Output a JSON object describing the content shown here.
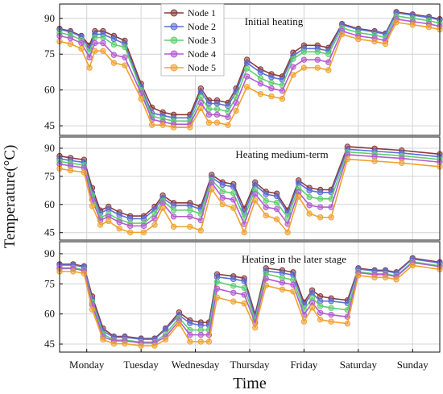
{
  "chart_data": {
    "type": "line",
    "xlabel": "Time",
    "ylabel": "Temperature(°C)",
    "categories": [
      "Monday",
      "Tuesday",
      "Wednesday",
      "Thursday",
      "Friday",
      "Saturday",
      "Sunday"
    ],
    "yticks": [
      45,
      60,
      75,
      90
    ],
    "ylim": [
      41,
      96
    ],
    "xlim": [
      0,
      7
    ],
    "legend": {
      "placement": "top-center",
      "entries": [
        "Node 1",
        "Node 2",
        "Node 3",
        "Node 4",
        "Node 5"
      ]
    },
    "colors": {
      "Node 1": "#8b3a3a",
      "Node 2": "#5b6fd6",
      "Node 3": "#5fcf6f",
      "Node 4": "#b35cd1",
      "Node 5": "#f0a22e"
    },
    "panels": [
      {
        "title": "Initial heating",
        "x": [
          0,
          0.2,
          0.4,
          0.55,
          0.65,
          0.8,
          1.0,
          1.2,
          1.5,
          1.7,
          1.9,
          2.1,
          2.4,
          2.6,
          2.75,
          2.9,
          3.1,
          3.25,
          3.45,
          3.7,
          3.9,
          4.1,
          4.3,
          4.5,
          4.75,
          4.95,
          5.2,
          5.5,
          5.8,
          6.0,
          6.2,
          6.5,
          6.8,
          7.0
        ],
        "series": [
          {
            "name": "Node 1",
            "values": [
              85,
              84,
              82,
              78,
              84,
              84,
              82,
              80,
              62,
              52,
              50,
              49,
              49,
              60,
              55,
              55,
              54,
              60,
              72,
              68,
              66,
              65,
              75,
              78,
              78,
              77,
              87,
              85,
              84,
              83,
              92,
              91,
              90,
              89
            ]
          },
          {
            "name": "Node 2",
            "values": [
              85,
              84,
              82,
              77,
              83,
              83,
              81,
              79,
              61,
              50,
              49,
              48,
              48,
              59,
              54,
              54,
              53,
              59,
              71,
              67,
              65,
              64,
              74,
              77,
              77,
              76,
              87,
              85,
              84,
              83,
              92,
              91,
              90,
              89
            ]
          },
          {
            "name": "Node 3",
            "values": [
              84,
              83,
              81,
              76,
              82,
              82,
              79,
              78,
              60,
              49,
              48,
              47,
              47,
              57,
              52,
              52,
              51,
              57,
              69,
              65,
              63,
              62,
              73,
              76,
              76,
              75,
              86,
              84,
              83,
              82,
              91,
              90,
              89,
              88
            ]
          },
          {
            "name": "Node 4",
            "values": [
              83,
              82,
              80,
              74,
              80,
              80,
              75,
              74,
              59,
              48,
              47,
              46,
              46,
              55,
              50,
              50,
              49,
              55,
              66,
              63,
              61,
              60,
              70,
              73,
              73,
              72,
              85,
              83,
              82,
              81,
              90,
              89,
              88,
              87
            ]
          },
          {
            "name": "Node 5",
            "values": [
              81,
              80,
              78,
              70,
              77,
              77,
              72,
              71,
              57,
              46,
              46,
              45,
              45,
              53,
              47,
              47,
              46,
              52,
              62,
              59,
              58,
              57,
              67,
              70,
              70,
              69,
              84,
              82,
              81,
              80,
              89,
              88,
              87,
              86
            ]
          }
        ]
      },
      {
        "title": "Heating medium-term",
        "x": [
          0,
          0.2,
          0.45,
          0.6,
          0.75,
          0.9,
          1.1,
          1.3,
          1.55,
          1.75,
          1.9,
          2.1,
          2.4,
          2.6,
          2.8,
          3.0,
          3.2,
          3.4,
          3.6,
          3.8,
          4.0,
          4.2,
          4.4,
          4.6,
          4.8,
          5.0,
          5.3,
          5.8,
          6.3,
          7.0
        ],
        "series": [
          {
            "name": "Node 1",
            "values": [
              85,
              84,
              83,
              68,
              56,
              58,
              55,
              53,
              53,
              58,
              64,
              60,
              60,
              58,
              75,
              71,
              70,
              57,
              71,
              66,
              65,
              56,
              72,
              68,
              67,
              67,
              90,
              89,
              88,
              86
            ]
          },
          {
            "name": "Node 2",
            "values": [
              84,
              83,
              82,
              66,
              55,
              57,
              54,
              52,
              52,
              57,
              63,
              59,
              59,
              57,
              74,
              70,
              69,
              55,
              70,
              65,
              64,
              55,
              71,
              67,
              66,
              66,
              89,
              88,
              87,
              85
            ]
          },
          {
            "name": "Node 3",
            "values": [
              83,
              82,
              81,
              65,
              53,
              55,
              52,
              50,
              50,
              55,
              62,
              57,
              57,
              55,
              73,
              67,
              66,
              53,
              68,
              62,
              61,
              53,
              69,
              64,
              63,
              63,
              88,
              87,
              86,
              84
            ]
          },
          {
            "name": "Node 4",
            "values": [
              82,
              81,
              80,
              63,
              52,
              54,
              51,
              49,
              49,
              53,
              61,
              54,
              54,
              52,
              72,
              64,
              63,
              50,
              66,
              59,
              58,
              50,
              67,
              60,
              59,
              59,
              87,
              86,
              85,
              83
            ]
          },
          {
            "name": "Node 5",
            "values": [
              80,
              79,
              78,
              60,
              50,
              52,
              48,
              46,
              46,
              50,
              59,
              49,
              49,
              47,
              69,
              61,
              59,
              46,
              63,
              55,
              53,
              46,
              65,
              56,
              54,
              54,
              85,
              84,
              83,
              81
            ]
          }
        ]
      },
      {
        "title": "Heating in the later stage",
        "x": [
          0,
          0.25,
          0.45,
          0.6,
          0.8,
          1.0,
          1.2,
          1.5,
          1.75,
          1.95,
          2.2,
          2.4,
          2.6,
          2.75,
          2.9,
          3.2,
          3.4,
          3.6,
          3.8,
          4.1,
          4.3,
          4.5,
          4.65,
          4.8,
          5.0,
          5.3,
          5.5,
          5.8,
          6.0,
          6.2,
          6.5,
          7.0
        ],
        "series": [
          {
            "name": "Node 1",
            "values": [
              84,
              84,
              83,
              68,
              52,
              48,
              48,
              47,
              47,
              52,
              60,
              56,
              55,
              55,
              79,
              78,
              77,
              59,
              82,
              81,
              80,
              65,
              71,
              68,
              67,
              66,
              82,
              81,
              81,
              80,
              87,
              85
            ]
          },
          {
            "name": "Node 2",
            "values": [
              84,
              84,
              83,
              67,
              51,
              48,
              48,
              47,
              47,
              52,
              59,
              55,
              54,
              54,
              78,
              77,
              76,
              58,
              81,
              80,
              79,
              64,
              70,
              66,
              66,
              65,
              82,
              81,
              81,
              80,
              87,
              85
            ]
          },
          {
            "name": "Node 3",
            "values": [
              83,
              83,
              82,
              66,
              50,
              47,
              47,
              46,
              46,
              50,
              58,
              52,
              52,
              52,
              76,
              74,
              73,
              57,
              80,
              78,
              77,
              62,
              68,
              64,
              63,
              62,
              81,
              80,
              80,
              79,
              86,
              84
            ]
          },
          {
            "name": "Node 4",
            "values": [
              83,
              83,
              82,
              65,
              49,
              47,
              47,
              46,
              46,
              49,
              57,
              50,
              50,
              50,
              73,
              71,
              70,
              56,
              78,
              76,
              75,
              60,
              66,
              61,
              60,
              59,
              81,
              80,
              80,
              79,
              86,
              84
            ]
          },
          {
            "name": "Node 5",
            "values": [
              82,
              82,
              81,
              63,
              48,
              46,
              46,
              45,
              45,
              48,
              56,
              47,
              47,
              47,
              69,
              67,
              66,
              54,
              75,
              73,
              72,
              57,
              64,
              58,
              57,
              56,
              80,
              79,
              79,
              78,
              85,
              83
            ]
          }
        ]
      }
    ]
  }
}
